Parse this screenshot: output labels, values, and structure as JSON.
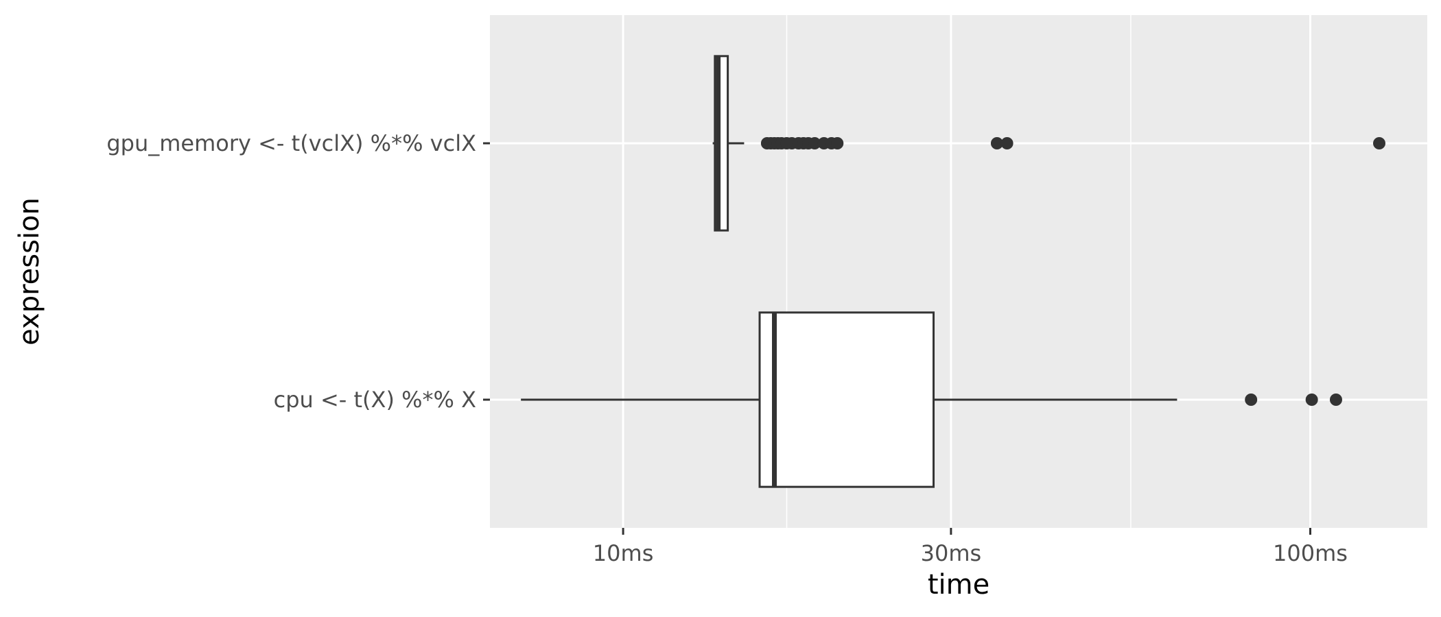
{
  "chart_data": {
    "type": "boxplot",
    "orientation": "horizontal",
    "title": "",
    "xlabel": "time",
    "ylabel": "expression",
    "x_scale": "log10",
    "x_unit": "ms",
    "xlim": [
      6.4,
      148
    ],
    "x_ticks": [
      {
        "value": 10,
        "label": "10ms"
      },
      {
        "value": 30,
        "label": "30ms"
      },
      {
        "value": 100,
        "label": "100ms"
      }
    ],
    "x_minor_ticks": [
      17.3,
      54.8
    ],
    "grid": true,
    "categories": [
      "gpu_memory <- t(vclX) %*% vclX",
      "cpu <- t(X) %*% X"
    ],
    "series": [
      {
        "category": "gpu_memory <- t(vclX) %*% vclX",
        "min": 13.5,
        "q1": 13.6,
        "median": 13.75,
        "q3": 14.2,
        "max": 15.0,
        "outliers": [
          16.2,
          16.4,
          16.6,
          16.8,
          17.0,
          17.3,
          17.6,
          18.0,
          18.3,
          18.6,
          19.0,
          19.6,
          20.1,
          20.5,
          35.0,
          36.2,
          126.0
        ]
      },
      {
        "category": "cpu <- t(X) %*% X",
        "min": 7.1,
        "q1": 15.8,
        "median": 16.6,
        "q3": 28.3,
        "max": 64.0,
        "outliers": [
          82.0,
          100.5,
          109.0
        ]
      }
    ],
    "colors": {
      "panel": "#ebebeb",
      "grid": "#ffffff",
      "box_fill": "#ffffff",
      "box_line": "#333333",
      "point": "#333333",
      "tick": "#333333"
    }
  }
}
